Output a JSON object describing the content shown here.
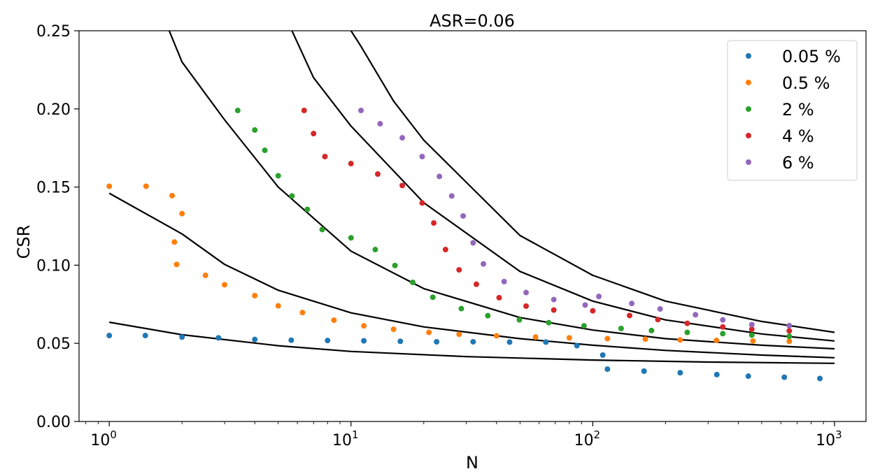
{
  "chart_data": {
    "type": "scatter",
    "title": "ASR=0.06",
    "xlabel": "N",
    "ylabel": "CSR",
    "xscale": "log",
    "xlim": [
      0.75,
      1350
    ],
    "ylim": [
      0,
      0.25
    ],
    "x_ticks": [
      {
        "value": 1,
        "base": "10",
        "exp": "0"
      },
      {
        "value": 10,
        "base": "10",
        "exp": "1"
      },
      {
        "value": 100,
        "base": "10",
        "exp": "2"
      },
      {
        "value": 1000,
        "base": "10",
        "exp": "3"
      }
    ],
    "y_ticks": [
      "0.00",
      "0.05",
      "0.10",
      "0.15",
      "0.20",
      "0.25"
    ],
    "grid": false,
    "legend_position": "top-right",
    "series": [
      {
        "name": "0.05 %",
        "color": "#1f77b4",
        "points": [
          [
            1.0,
            0.055
          ],
          [
            1.41,
            0.055
          ],
          [
            2.0,
            0.054
          ],
          [
            2.83,
            0.0535
          ],
          [
            4.0,
            0.0525
          ],
          [
            5.66,
            0.052
          ],
          [
            8.0,
            0.0518
          ],
          [
            11.3,
            0.0516
          ],
          [
            16.0,
            0.0513
          ],
          [
            22.6,
            0.051
          ],
          [
            32.0,
            0.051
          ],
          [
            45.3,
            0.0508
          ],
          [
            64.0,
            0.0508
          ],
          [
            86.0,
            0.0485
          ],
          [
            110.0,
            0.0425
          ],
          [
            115.0,
            0.0335
          ],
          [
            163.0,
            0.0322
          ],
          [
            230.0,
            0.0312
          ],
          [
            326.0,
            0.03
          ],
          [
            440.0,
            0.029
          ],
          [
            620.0,
            0.0283
          ],
          [
            870.0,
            0.0275
          ]
        ]
      },
      {
        "name": "0.5 %",
        "color": "#ff7f0e",
        "points": [
          [
            1.0,
            0.1505
          ],
          [
            1.42,
            0.1505
          ],
          [
            1.82,
            0.1445
          ],
          [
            2.0,
            0.133
          ],
          [
            1.86,
            0.1148
          ],
          [
            1.9,
            0.1005
          ],
          [
            2.5,
            0.0935
          ],
          [
            3.0,
            0.0875
          ],
          [
            4.0,
            0.0805
          ],
          [
            5.0,
            0.074
          ],
          [
            6.3,
            0.0697
          ],
          [
            8.5,
            0.0648
          ],
          [
            11.3,
            0.0612
          ],
          [
            15.0,
            0.059
          ],
          [
            21.0,
            0.057
          ],
          [
            28.0,
            0.0558
          ],
          [
            40.0,
            0.0548
          ],
          [
            58.0,
            0.054
          ],
          [
            80.0,
            0.0535
          ],
          [
            115.0,
            0.053
          ],
          [
            165.0,
            0.0527
          ],
          [
            230.0,
            0.0522
          ],
          [
            325.0,
            0.0519
          ],
          [
            460.0,
            0.0515
          ],
          [
            650.0,
            0.0513
          ]
        ]
      },
      {
        "name": "2 %",
        "color": "#2ca02c",
        "points": [
          [
            3.4,
            0.199
          ],
          [
            4.0,
            0.1865
          ],
          [
            4.4,
            0.1735
          ],
          [
            5.0,
            0.1572
          ],
          [
            5.7,
            0.1443
          ],
          [
            6.6,
            0.1357
          ],
          [
            7.6,
            0.1228
          ],
          [
            10.0,
            0.1175
          ],
          [
            12.6,
            0.11
          ],
          [
            15.2,
            0.0998
          ],
          [
            18.0,
            0.089
          ],
          [
            21.8,
            0.0795
          ],
          [
            28.6,
            0.0722
          ],
          [
            36.8,
            0.0677
          ],
          [
            49.7,
            0.065
          ],
          [
            65.8,
            0.0632
          ],
          [
            92.0,
            0.0612
          ],
          [
            131.0,
            0.0595
          ],
          [
            175.0,
            0.0582
          ],
          [
            246.0,
            0.057
          ],
          [
            345.0,
            0.0562
          ],
          [
            455.0,
            0.0553
          ],
          [
            650.0,
            0.0545
          ]
        ]
      },
      {
        "name": "4 %",
        "color": "#d62728",
        "points": [
          [
            6.4,
            0.199
          ],
          [
            7.0,
            0.1842
          ],
          [
            7.8,
            0.1695
          ],
          [
            10.0,
            0.165
          ],
          [
            12.9,
            0.1583
          ],
          [
            16.3,
            0.151
          ],
          [
            19.7,
            0.1398
          ],
          [
            22.0,
            0.127
          ],
          [
            24.6,
            0.11
          ],
          [
            28.0,
            0.097
          ],
          [
            33.0,
            0.0878
          ],
          [
            41.0,
            0.0792
          ],
          [
            53.0,
            0.0738
          ],
          [
            69.0,
            0.0713
          ],
          [
            100.0,
            0.0708
          ],
          [
            142.0,
            0.0678
          ],
          [
            186.0,
            0.0652
          ],
          [
            246.0,
            0.0628
          ],
          [
            345.0,
            0.0605
          ],
          [
            455.0,
            0.059
          ],
          [
            650.0,
            0.058
          ]
        ]
      },
      {
        "name": "6 %",
        "color": "#9467bd",
        "points": [
          [
            11.0,
            0.199
          ],
          [
            13.2,
            0.1905
          ],
          [
            16.3,
            0.1815
          ],
          [
            19.7,
            0.1695
          ],
          [
            23.2,
            0.1568
          ],
          [
            26.1,
            0.1443
          ],
          [
            29.1,
            0.1315
          ],
          [
            32.0,
            0.1143
          ],
          [
            35.3,
            0.1008
          ],
          [
            43.0,
            0.0895
          ],
          [
            53.0,
            0.0825
          ],
          [
            69.0,
            0.078
          ],
          [
            93.0,
            0.0745
          ],
          [
            106.0,
            0.08
          ],
          [
            145.0,
            0.0755
          ],
          [
            190.0,
            0.072
          ],
          [
            266.0,
            0.0683
          ],
          [
            345.0,
            0.065
          ],
          [
            455.0,
            0.062
          ],
          [
            650.0,
            0.0613
          ]
        ]
      }
    ],
    "curves": [
      {
        "points": [
          [
            1.0,
            0.0635
          ],
          [
            2.0,
            0.0555
          ],
          [
            5.0,
            0.0485
          ],
          [
            10.0,
            0.0448
          ],
          [
            30.0,
            0.0415
          ],
          [
            100.0,
            0.0393
          ],
          [
            300.0,
            0.038
          ],
          [
            1000.0,
            0.0372
          ]
        ]
      },
      {
        "points": [
          [
            1.0,
            0.146
          ],
          [
            2.0,
            0.12
          ],
          [
            3.0,
            0.1005
          ],
          [
            5.0,
            0.084
          ],
          [
            10.0,
            0.0695
          ],
          [
            20.0,
            0.0605
          ],
          [
            50.0,
            0.053
          ],
          [
            100.0,
            0.0488
          ],
          [
            200.0,
            0.0455
          ],
          [
            500.0,
            0.0425
          ],
          [
            1000.0,
            0.0408
          ]
        ]
      },
      {
        "points": [
          [
            1.77,
            0.25
          ],
          [
            2.0,
            0.23
          ],
          [
            3.0,
            0.193
          ],
          [
            5.0,
            0.15
          ],
          [
            10.0,
            0.109
          ],
          [
            20.0,
            0.085
          ],
          [
            50.0,
            0.0665
          ],
          [
            100.0,
            0.0585
          ],
          [
            200.0,
            0.053
          ],
          [
            500.0,
            0.0488
          ],
          [
            1000.0,
            0.0465
          ]
        ]
      },
      {
        "points": [
          [
            5.7,
            0.25
          ],
          [
            7.0,
            0.22
          ],
          [
            10.0,
            0.189
          ],
          [
            20.0,
            0.14
          ],
          [
            50.0,
            0.096
          ],
          [
            100.0,
            0.077
          ],
          [
            200.0,
            0.065
          ],
          [
            500.0,
            0.056
          ],
          [
            1000.0,
            0.0515
          ]
        ]
      },
      {
        "points": [
          [
            10.0,
            0.25
          ],
          [
            11.0,
            0.24
          ],
          [
            15.0,
            0.205
          ],
          [
            20.0,
            0.18
          ],
          [
            50.0,
            0.119
          ],
          [
            100.0,
            0.0935
          ],
          [
            200.0,
            0.077
          ],
          [
            500.0,
            0.064
          ],
          [
            1000.0,
            0.057
          ]
        ]
      }
    ]
  }
}
